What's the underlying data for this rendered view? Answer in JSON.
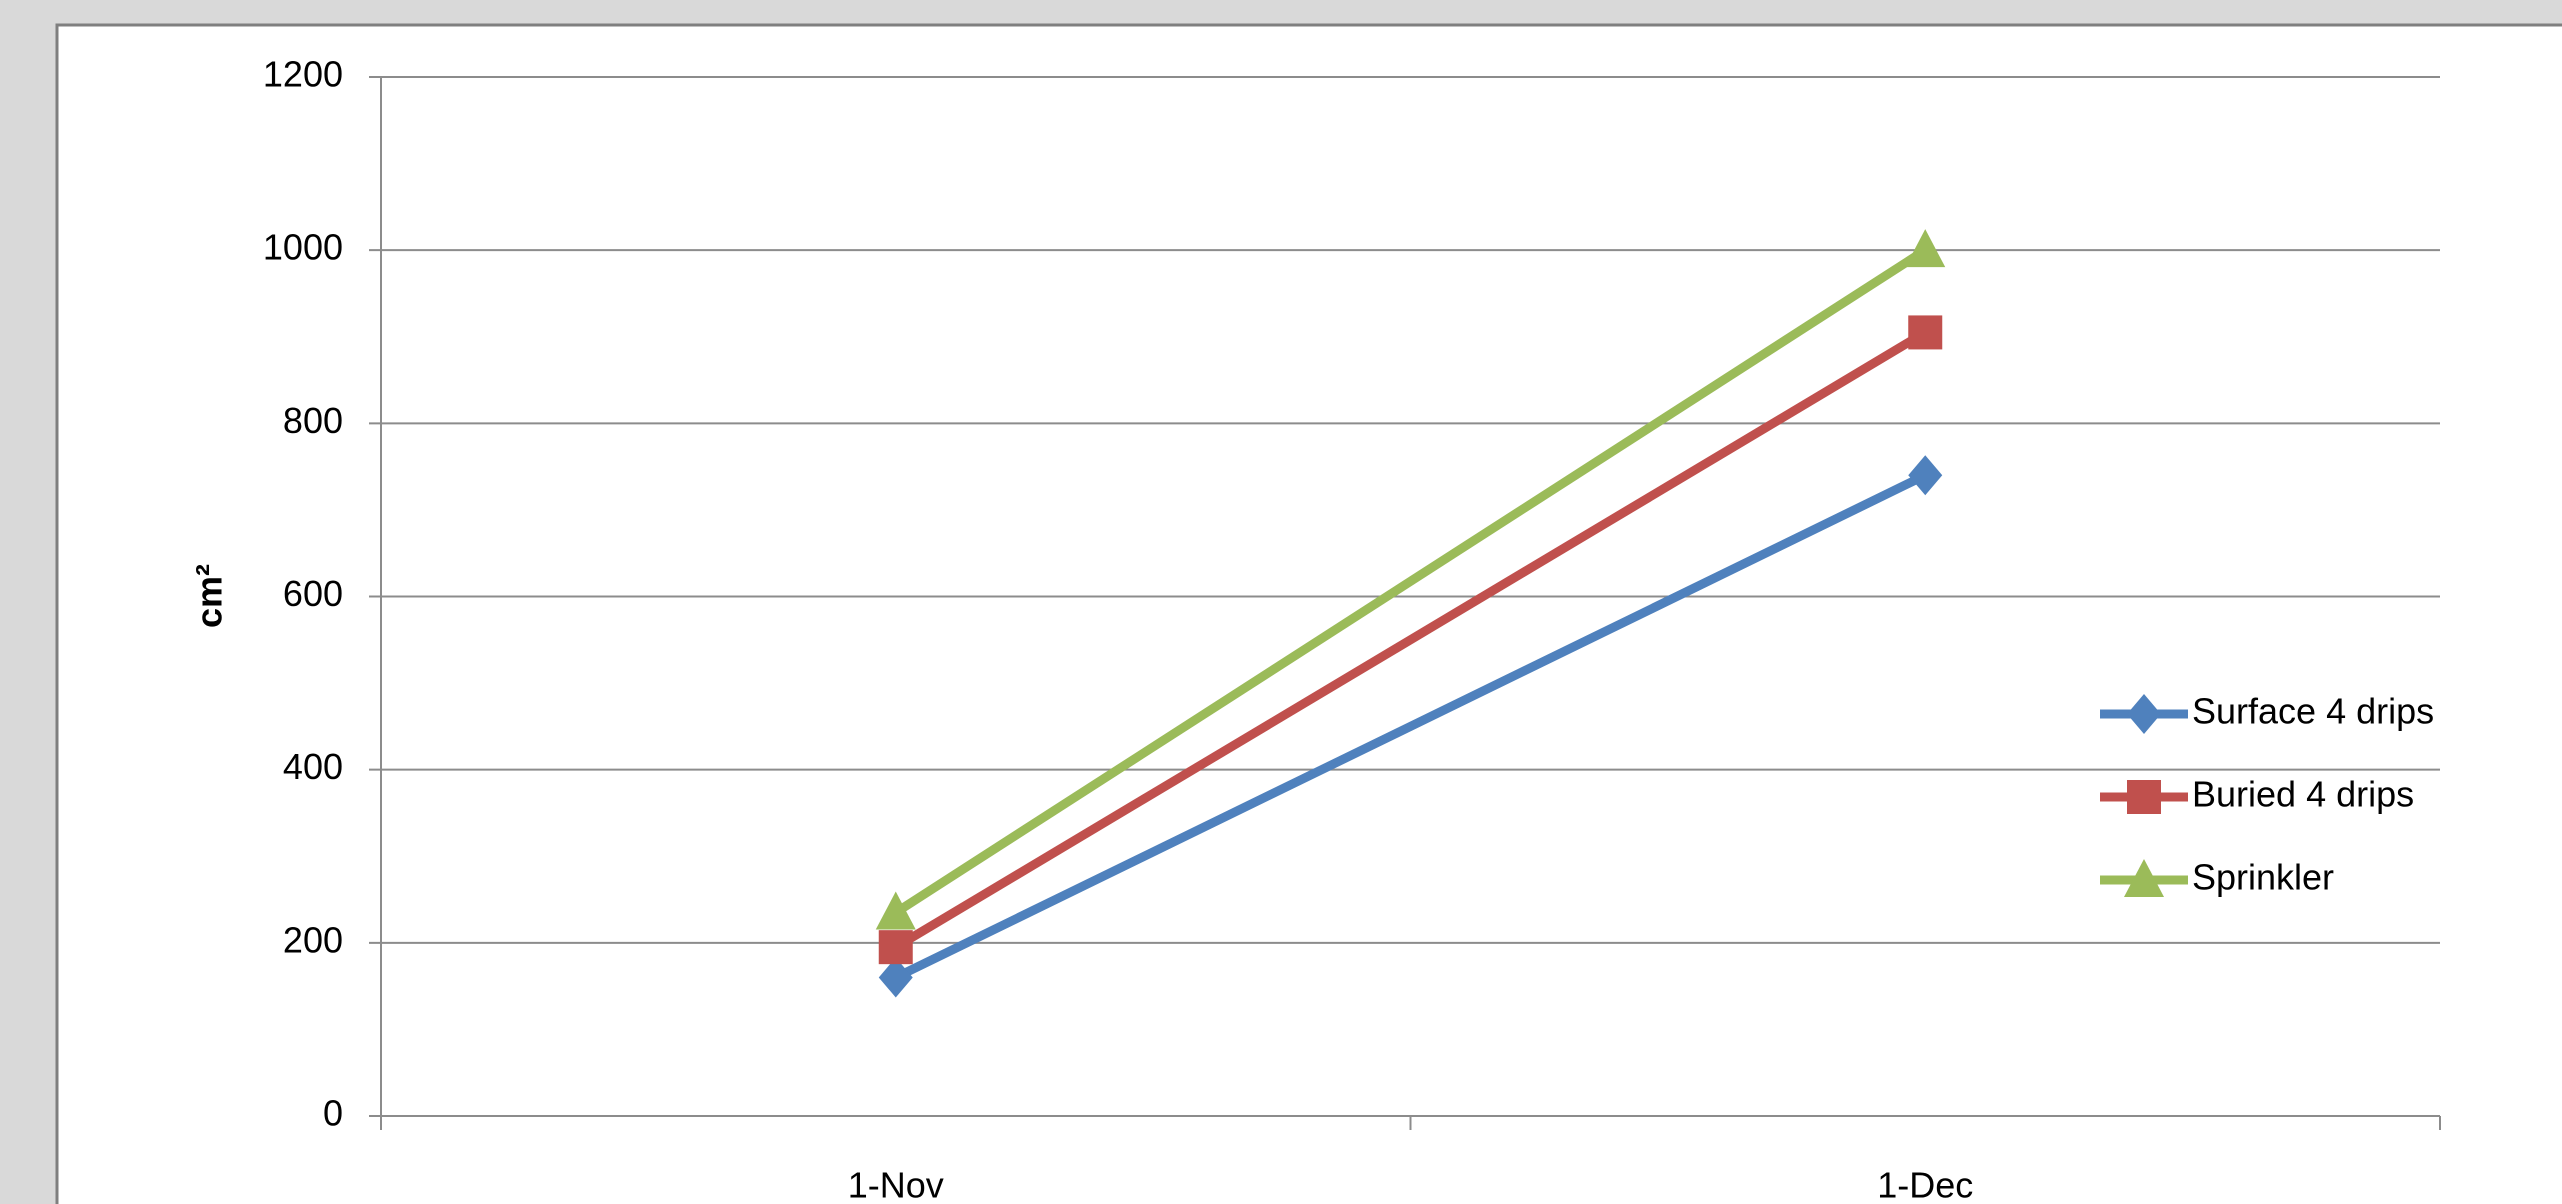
{
  "chart_data": {
    "type": "line",
    "y_label": "cm²",
    "categories": [
      "1-Nov",
      "1-Dec"
    ],
    "series": [
      {
        "name": "Surface 4 drips",
        "color": "#4f81bd",
        "marker": "diamond",
        "values": [
          160,
          740
        ]
      },
      {
        "name": "Buried 4 drips",
        "color": "#c0504d",
        "marker": "square",
        "values": [
          195,
          905
        ]
      },
      {
        "name": "Sprinkler",
        "color": "#9bbb59",
        "marker": "triangle",
        "values": [
          235,
          1000
        ]
      }
    ],
    "ylim": [
      0,
      1200
    ],
    "yticks": [
      0,
      200,
      400,
      600,
      800,
      1000,
      1200
    ],
    "grid": true,
    "legend": "right"
  }
}
